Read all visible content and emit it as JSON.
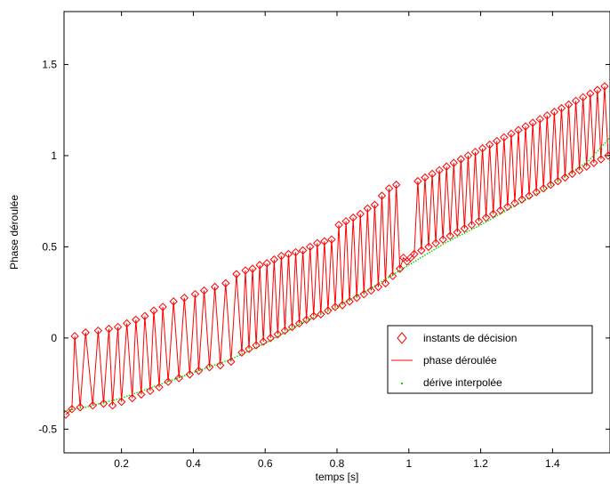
{
  "chart_data": {
    "type": "line",
    "title": "",
    "xlabel": "temps [s]",
    "ylabel": "Phase déroulée",
    "xlim": [
      0.04,
      1.56
    ],
    "ylim": [
      -0.63,
      1.79
    ],
    "x_ticks": [
      0.2,
      0.4,
      0.6,
      0.8,
      1,
      1.2,
      1.4
    ],
    "x_tick_labels": [
      "0.2",
      "0.4",
      "0.6",
      "0.8",
      "1",
      "1.2",
      "1.4"
    ],
    "y_ticks": [
      -0.5,
      0,
      0.5,
      1,
      1.5
    ],
    "y_tick_labels": [
      "-0.5",
      "0",
      "0.5",
      "1",
      "1.5"
    ],
    "grid": false,
    "legend_position": "lower-right",
    "colors": {
      "decision": "#ff0000",
      "phase": "#ff0000",
      "drift": "#00dd00"
    },
    "series": [
      {
        "name": "instants de décision",
        "marker": "diamond",
        "x": [
          0.045,
          0.062,
          0.07,
          0.085,
          0.1,
          0.12,
          0.135,
          0.15,
          0.165,
          0.175,
          0.19,
          0.2,
          0.215,
          0.23,
          0.24,
          0.255,
          0.265,
          0.28,
          0.29,
          0.305,
          0.315,
          0.33,
          0.345,
          0.36,
          0.375,
          0.39,
          0.405,
          0.415,
          0.43,
          0.445,
          0.46,
          0.475,
          0.49,
          0.505,
          0.52,
          0.535,
          0.545,
          0.555,
          0.565,
          0.575,
          0.585,
          0.595,
          0.605,
          0.615,
          0.625,
          0.635,
          0.645,
          0.655,
          0.665,
          0.675,
          0.685,
          0.695,
          0.705,
          0.715,
          0.725,
          0.735,
          0.745,
          0.755,
          0.765,
          0.775,
          0.785,
          0.795,
          0.805,
          0.815,
          0.825,
          0.835,
          0.845,
          0.855,
          0.865,
          0.875,
          0.885,
          0.895,
          0.905,
          0.915,
          0.925,
          0.935,
          0.945,
          0.955,
          0.965,
          0.975,
          0.985,
          0.995,
          1.005,
          1.015,
          1.025,
          1.035,
          1.045,
          1.055,
          1.065,
          1.075,
          1.085,
          1.095,
          1.105,
          1.115,
          1.125,
          1.135,
          1.145,
          1.155,
          1.165,
          1.175,
          1.185,
          1.195,
          1.205,
          1.215,
          1.225,
          1.235,
          1.245,
          1.255,
          1.265,
          1.275,
          1.285,
          1.295,
          1.305,
          1.315,
          1.325,
          1.335,
          1.345,
          1.355,
          1.365,
          1.375,
          1.385,
          1.395,
          1.405,
          1.415,
          1.425,
          1.435,
          1.445,
          1.455,
          1.465,
          1.475,
          1.485,
          1.495,
          1.505,
          1.515,
          1.525,
          1.535,
          1.545,
          1.555
        ],
        "y": [
          -0.42,
          -0.39,
          0.01,
          -0.38,
          0.03,
          -0.37,
          0.04,
          -0.36,
          0.05,
          -0.37,
          0.06,
          -0.35,
          0.08,
          -0.33,
          0.1,
          -0.31,
          0.12,
          -0.29,
          0.15,
          -0.27,
          0.17,
          -0.24,
          0.2,
          -0.22,
          0.22,
          -0.2,
          0.24,
          -0.18,
          0.26,
          -0.16,
          0.28,
          -0.15,
          0.3,
          -0.13,
          0.35,
          -0.08,
          0.37,
          -0.06,
          0.38,
          -0.04,
          0.4,
          -0.02,
          0.41,
          0.0,
          0.43,
          0.02,
          0.45,
          0.04,
          0.46,
          0.06,
          0.47,
          0.08,
          0.48,
          0.1,
          0.5,
          0.12,
          0.52,
          0.13,
          0.53,
          0.15,
          0.54,
          0.17,
          0.62,
          0.18,
          0.64,
          0.2,
          0.66,
          0.22,
          0.68,
          0.24,
          0.71,
          0.26,
          0.73,
          0.28,
          0.78,
          0.3,
          0.82,
          0.34,
          0.84,
          0.38,
          0.44,
          0.42,
          0.44,
          0.46,
          0.86,
          0.48,
          0.88,
          0.5,
          0.9,
          0.52,
          0.92,
          0.54,
          0.94,
          0.56,
          0.96,
          0.58,
          0.98,
          0.6,
          1.0,
          0.62,
          1.02,
          0.64,
          1.04,
          0.66,
          1.06,
          0.68,
          1.08,
          0.7,
          1.1,
          0.72,
          1.12,
          0.74,
          1.14,
          0.76,
          1.16,
          0.78,
          1.18,
          0.8,
          1.2,
          0.82,
          1.22,
          0.84,
          1.24,
          0.86,
          1.26,
          0.88,
          1.28,
          0.9,
          1.3,
          0.92,
          1.32,
          0.94,
          1.34,
          0.96,
          1.36,
          0.98,
          1.38,
          1.0
        ]
      },
      {
        "name": "phase déroulée",
        "marker": "line",
        "x": [
          0.045,
          0.062,
          0.07,
          0.085,
          0.1,
          0.12,
          0.135,
          0.15,
          0.165,
          0.175,
          0.19,
          0.2,
          0.215,
          0.23,
          0.24,
          0.255,
          0.265,
          0.28,
          0.29,
          0.305,
          0.315,
          0.33,
          0.345,
          0.36,
          0.375,
          0.39,
          0.405,
          0.415,
          0.43,
          0.445,
          0.46,
          0.475,
          0.49,
          0.505,
          0.52,
          0.535,
          0.545,
          0.555,
          0.565,
          0.575,
          0.585,
          0.595,
          0.605,
          0.615,
          0.625,
          0.635,
          0.645,
          0.655,
          0.665,
          0.675,
          0.685,
          0.695,
          0.705,
          0.715,
          0.725,
          0.735,
          0.745,
          0.755,
          0.765,
          0.775,
          0.785,
          0.795,
          0.805,
          0.815,
          0.825,
          0.835,
          0.845,
          0.855,
          0.865,
          0.875,
          0.885,
          0.895,
          0.905,
          0.915,
          0.925,
          0.935,
          0.945,
          0.955,
          0.965,
          0.975,
          0.985,
          0.995,
          1.005,
          1.015,
          1.025,
          1.035,
          1.045,
          1.055,
          1.065,
          1.075,
          1.085,
          1.095,
          1.105,
          1.115,
          1.125,
          1.135,
          1.145,
          1.155,
          1.165,
          1.175,
          1.185,
          1.195,
          1.205,
          1.215,
          1.225,
          1.235,
          1.245,
          1.255,
          1.265,
          1.275,
          1.285,
          1.295,
          1.305,
          1.315,
          1.325,
          1.335,
          1.345,
          1.355,
          1.365,
          1.375,
          1.385,
          1.395,
          1.405,
          1.415,
          1.425,
          1.435,
          1.445,
          1.455,
          1.465,
          1.475,
          1.485,
          1.495,
          1.505,
          1.515,
          1.525,
          1.535,
          1.545,
          1.555
        ],
        "y": [
          -0.42,
          -0.39,
          0.01,
          -0.38,
          0.03,
          -0.37,
          0.04,
          -0.36,
          0.05,
          -0.37,
          0.06,
          -0.35,
          0.08,
          -0.33,
          0.1,
          -0.31,
          0.12,
          -0.29,
          0.15,
          -0.27,
          0.17,
          -0.24,
          0.2,
          -0.22,
          0.22,
          -0.2,
          0.24,
          -0.18,
          0.26,
          -0.16,
          0.28,
          -0.15,
          0.3,
          -0.13,
          0.35,
          -0.08,
          0.37,
          -0.06,
          0.38,
          -0.04,
          0.4,
          -0.02,
          0.41,
          0.0,
          0.43,
          0.02,
          0.45,
          0.04,
          0.46,
          0.06,
          0.47,
          0.08,
          0.48,
          0.1,
          0.5,
          0.12,
          0.52,
          0.13,
          0.53,
          0.15,
          0.54,
          0.17,
          0.62,
          0.18,
          0.64,
          0.2,
          0.66,
          0.22,
          0.68,
          0.24,
          0.71,
          0.26,
          0.73,
          0.28,
          0.78,
          0.3,
          0.82,
          0.34,
          0.84,
          0.38,
          0.44,
          0.42,
          0.44,
          0.46,
          0.86,
          0.48,
          0.88,
          0.5,
          0.9,
          0.52,
          0.92,
          0.54,
          0.94,
          0.56,
          0.96,
          0.58,
          0.98,
          0.6,
          1.0,
          0.62,
          1.02,
          0.64,
          1.04,
          0.66,
          1.06,
          0.68,
          1.08,
          0.7,
          1.1,
          0.72,
          1.12,
          0.74,
          1.14,
          0.76,
          1.16,
          0.78,
          1.18,
          0.8,
          1.2,
          0.82,
          1.22,
          0.84,
          1.24,
          0.86,
          1.26,
          0.88,
          1.28,
          0.9,
          1.3,
          0.92,
          1.32,
          0.94,
          1.34,
          0.96,
          1.36,
          0.98,
          1.38,
          1.0
        ]
      },
      {
        "name": "dérive interpolée",
        "marker": "dot",
        "x": [
          0.04,
          0.1,
          0.2,
          0.3,
          0.4,
          0.5,
          0.6,
          0.7,
          0.8,
          0.9,
          1.0,
          1.1,
          1.2,
          1.3,
          1.4,
          1.5,
          1.56
        ],
        "y": [
          -0.4,
          -0.38,
          -0.33,
          -0.26,
          -0.19,
          -0.12,
          -0.03,
          0.08,
          0.17,
          0.28,
          0.4,
          0.52,
          0.62,
          0.73,
          0.84,
          0.97,
          1.1
        ]
      }
    ]
  }
}
